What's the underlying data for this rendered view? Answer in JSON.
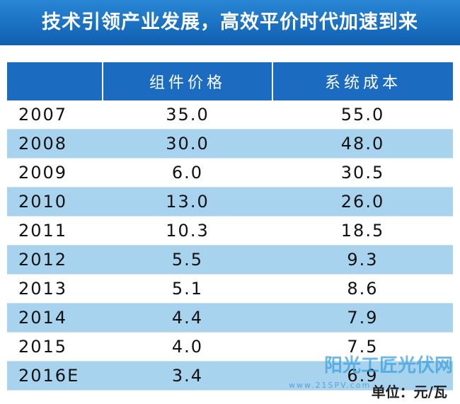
{
  "header": {
    "title": "技术引领产业发展，高效平价时代加速到来"
  },
  "table": {
    "columns": [
      "组件价格",
      "系统成本"
    ],
    "rows": [
      [
        "2007",
        "35.0",
        "55.0"
      ],
      [
        "2008",
        "30.0",
        "48.0"
      ],
      [
        "2009",
        "6.0",
        "30.5"
      ],
      [
        "2010",
        "13.0",
        "26.0"
      ],
      [
        "2011",
        "10.3",
        "18.5"
      ],
      [
        "2012",
        "5.5",
        "9.3"
      ],
      [
        "2013",
        "5.1",
        "8.6"
      ],
      [
        "2014",
        "4.4",
        "7.9"
      ],
      [
        "2015",
        "4.0",
        "7.5"
      ],
      [
        "2016E",
        "3.4",
        "6.9"
      ]
    ]
  },
  "footer": {
    "unit": "单位：元/瓦",
    "watermark": "阳光工匠光伏网",
    "watermark_url": "www.21SPV.com"
  }
}
